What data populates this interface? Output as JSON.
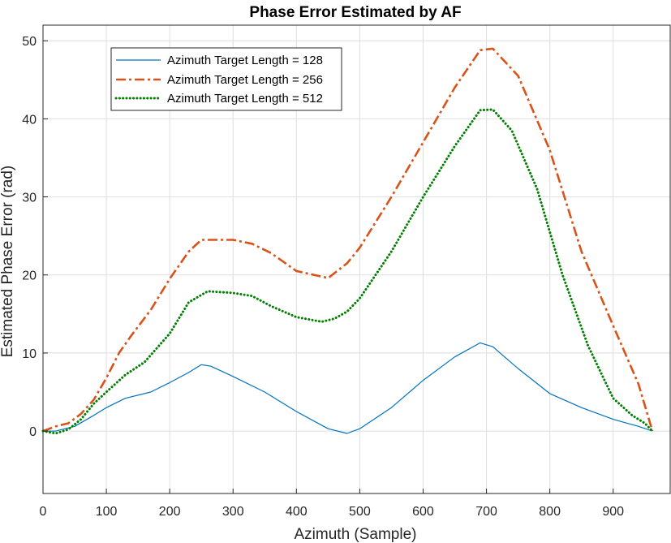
{
  "chart_data": {
    "type": "line",
    "title": "Phase Error Estimated by AF",
    "xlabel": "Azimuth (Sample)",
    "ylabel": "Estimated Phase Error (rad)",
    "xlim": [
      0,
      990
    ],
    "ylim": [
      -8,
      52
    ],
    "xticks": [
      0,
      100,
      200,
      300,
      400,
      500,
      600,
      700,
      800,
      900
    ],
    "yticks": [
      0,
      10,
      20,
      30,
      40,
      50
    ],
    "grid": true,
    "legend_position": "top-left",
    "series": [
      {
        "name": "Azimuth Target Length = 128",
        "color": "#0072BD",
        "style": "solid",
        "points": [
          [
            0,
            0
          ],
          [
            20,
            0
          ],
          [
            50,
            0.6
          ],
          [
            80,
            2
          ],
          [
            100,
            3
          ],
          [
            130,
            4.2
          ],
          [
            170,
            5
          ],
          [
            200,
            6.2
          ],
          [
            230,
            7.5
          ],
          [
            250,
            8.5
          ],
          [
            265,
            8.3
          ],
          [
            300,
            7
          ],
          [
            350,
            5
          ],
          [
            400,
            2.5
          ],
          [
            450,
            0.3
          ],
          [
            480,
            -0.3
          ],
          [
            500,
            0.3
          ],
          [
            550,
            3
          ],
          [
            600,
            6.5
          ],
          [
            650,
            9.5
          ],
          [
            690,
            11.3
          ],
          [
            710,
            10.8
          ],
          [
            750,
            8
          ],
          [
            800,
            4.8
          ],
          [
            850,
            3
          ],
          [
            900,
            1.5
          ],
          [
            940,
            0.6
          ],
          [
            962,
            0
          ]
        ]
      },
      {
        "name": "Azimuth Target Length = 256",
        "color": "#D95319",
        "style": "dashdot",
        "points": [
          [
            0,
            0
          ],
          [
            20,
            0.6
          ],
          [
            40,
            1
          ],
          [
            60,
            2.2
          ],
          [
            80,
            4
          ],
          [
            100,
            6.8
          ],
          [
            120,
            10
          ],
          [
            140,
            12.3
          ],
          [
            170,
            15.5
          ],
          [
            200,
            19.5
          ],
          [
            230,
            23
          ],
          [
            250,
            24.5
          ],
          [
            300,
            24.5
          ],
          [
            330,
            24
          ],
          [
            360,
            22.8
          ],
          [
            400,
            20.5
          ],
          [
            450,
            19.6
          ],
          [
            480,
            21.5
          ],
          [
            500,
            23.5
          ],
          [
            550,
            30
          ],
          [
            600,
            37
          ],
          [
            650,
            44
          ],
          [
            690,
            48.8
          ],
          [
            710,
            49
          ],
          [
            750,
            45.5
          ],
          [
            800,
            36
          ],
          [
            850,
            23
          ],
          [
            900,
            13.5
          ],
          [
            940,
            6
          ],
          [
            962,
            0
          ]
        ]
      },
      {
        "name": "Azimuth Target Length = 512",
        "color": "#008000",
        "style": "dotted",
        "points": [
          [
            0,
            0
          ],
          [
            20,
            -0.3
          ],
          [
            40,
            0.2
          ],
          [
            60,
            1.5
          ],
          [
            80,
            3.5
          ],
          [
            100,
            5
          ],
          [
            130,
            7.2
          ],
          [
            160,
            8.8
          ],
          [
            200,
            12.5
          ],
          [
            230,
            16.5
          ],
          [
            260,
            17.9
          ],
          [
            300,
            17.7
          ],
          [
            330,
            17.3
          ],
          [
            360,
            16
          ],
          [
            400,
            14.6
          ],
          [
            440,
            14
          ],
          [
            460,
            14.4
          ],
          [
            480,
            15.3
          ],
          [
            500,
            17
          ],
          [
            550,
            23
          ],
          [
            600,
            30
          ],
          [
            650,
            36.5
          ],
          [
            690,
            41.1
          ],
          [
            710,
            41.2
          ],
          [
            740,
            38.5
          ],
          [
            780,
            31
          ],
          [
            820,
            20
          ],
          [
            860,
            11
          ],
          [
            900,
            4.2
          ],
          [
            930,
            2
          ],
          [
            950,
            1
          ],
          [
            962,
            0
          ]
        ]
      }
    ]
  }
}
